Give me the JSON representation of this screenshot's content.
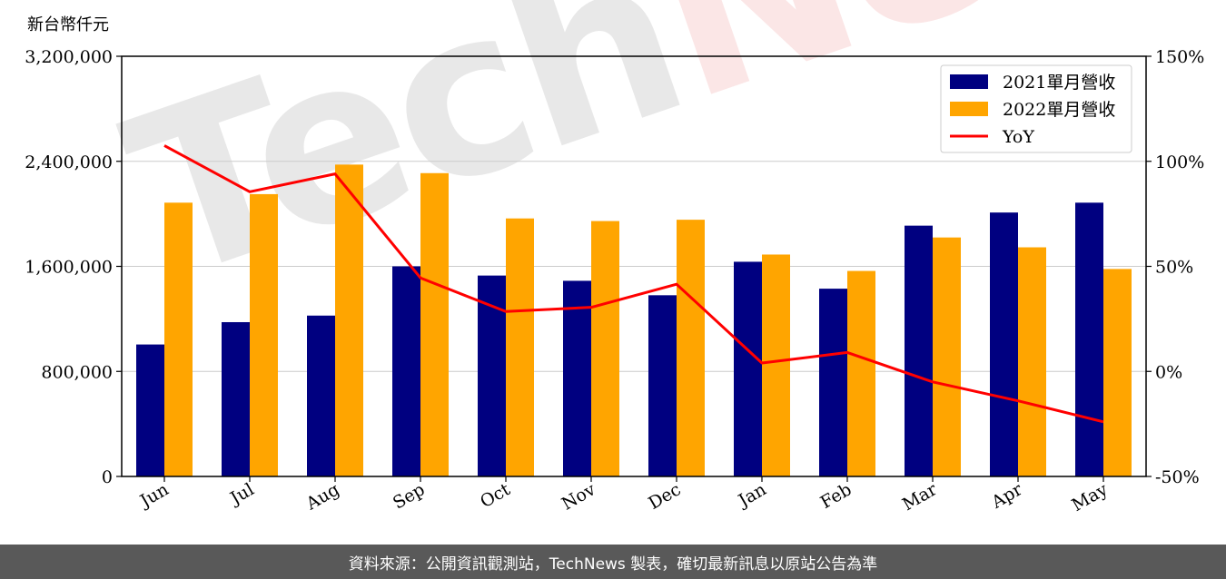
{
  "chart_data": {
    "type": "bar",
    "y_unit_label": "新台幣仟元",
    "categories": [
      "Jun",
      "Jul",
      "Aug",
      "Sep",
      "Oct",
      "Nov",
      "Dec",
      "Jan",
      "Feb",
      "Mar",
      "Apr",
      "May"
    ],
    "series": [
      {
        "name": "2021單月營收",
        "type": "bar",
        "color": "#000080",
        "axis": "left",
        "values": [
          1005000,
          1175000,
          1225000,
          1600000,
          1530000,
          1490000,
          1380000,
          1635000,
          1430000,
          1910000,
          2010000,
          2085000
        ]
      },
      {
        "name": "2022單月營收",
        "type": "bar",
        "color": "#ffa500",
        "axis": "left",
        "values": [
          2085000,
          2150000,
          2375000,
          2310000,
          1965000,
          1945000,
          1955000,
          1690000,
          1565000,
          1820000,
          1745000,
          1580000
        ]
      },
      {
        "name": "YoY",
        "type": "line",
        "color": "#ff0000",
        "axis": "right",
        "values": [
          107.5,
          85.5,
          94,
          44.5,
          28.5,
          30.5,
          41.5,
          4,
          9,
          -5,
          -14,
          -24
        ]
      }
    ],
    "y_left": {
      "min": 0,
      "max": 3200000,
      "ticks": [
        0,
        800000,
        1600000,
        2400000,
        3200000
      ],
      "tick_labels": [
        "0",
        "800,000",
        "1,600,000",
        "2,400,000",
        "3,200,000"
      ]
    },
    "y_right": {
      "min": -50,
      "max": 150,
      "ticks": [
        -50,
        0,
        50,
        100,
        150
      ],
      "tick_labels": [
        "-50%",
        "0%",
        "50%",
        "100%",
        "150%"
      ]
    },
    "grid": true,
    "legend_position": "top-right"
  },
  "watermark": {
    "part1": "Tech",
    "part2": "News"
  },
  "footer": {
    "text": "資料來源：公開資訊觀測站，TechNews 製表，確切最新訊息以原站公告為準"
  }
}
